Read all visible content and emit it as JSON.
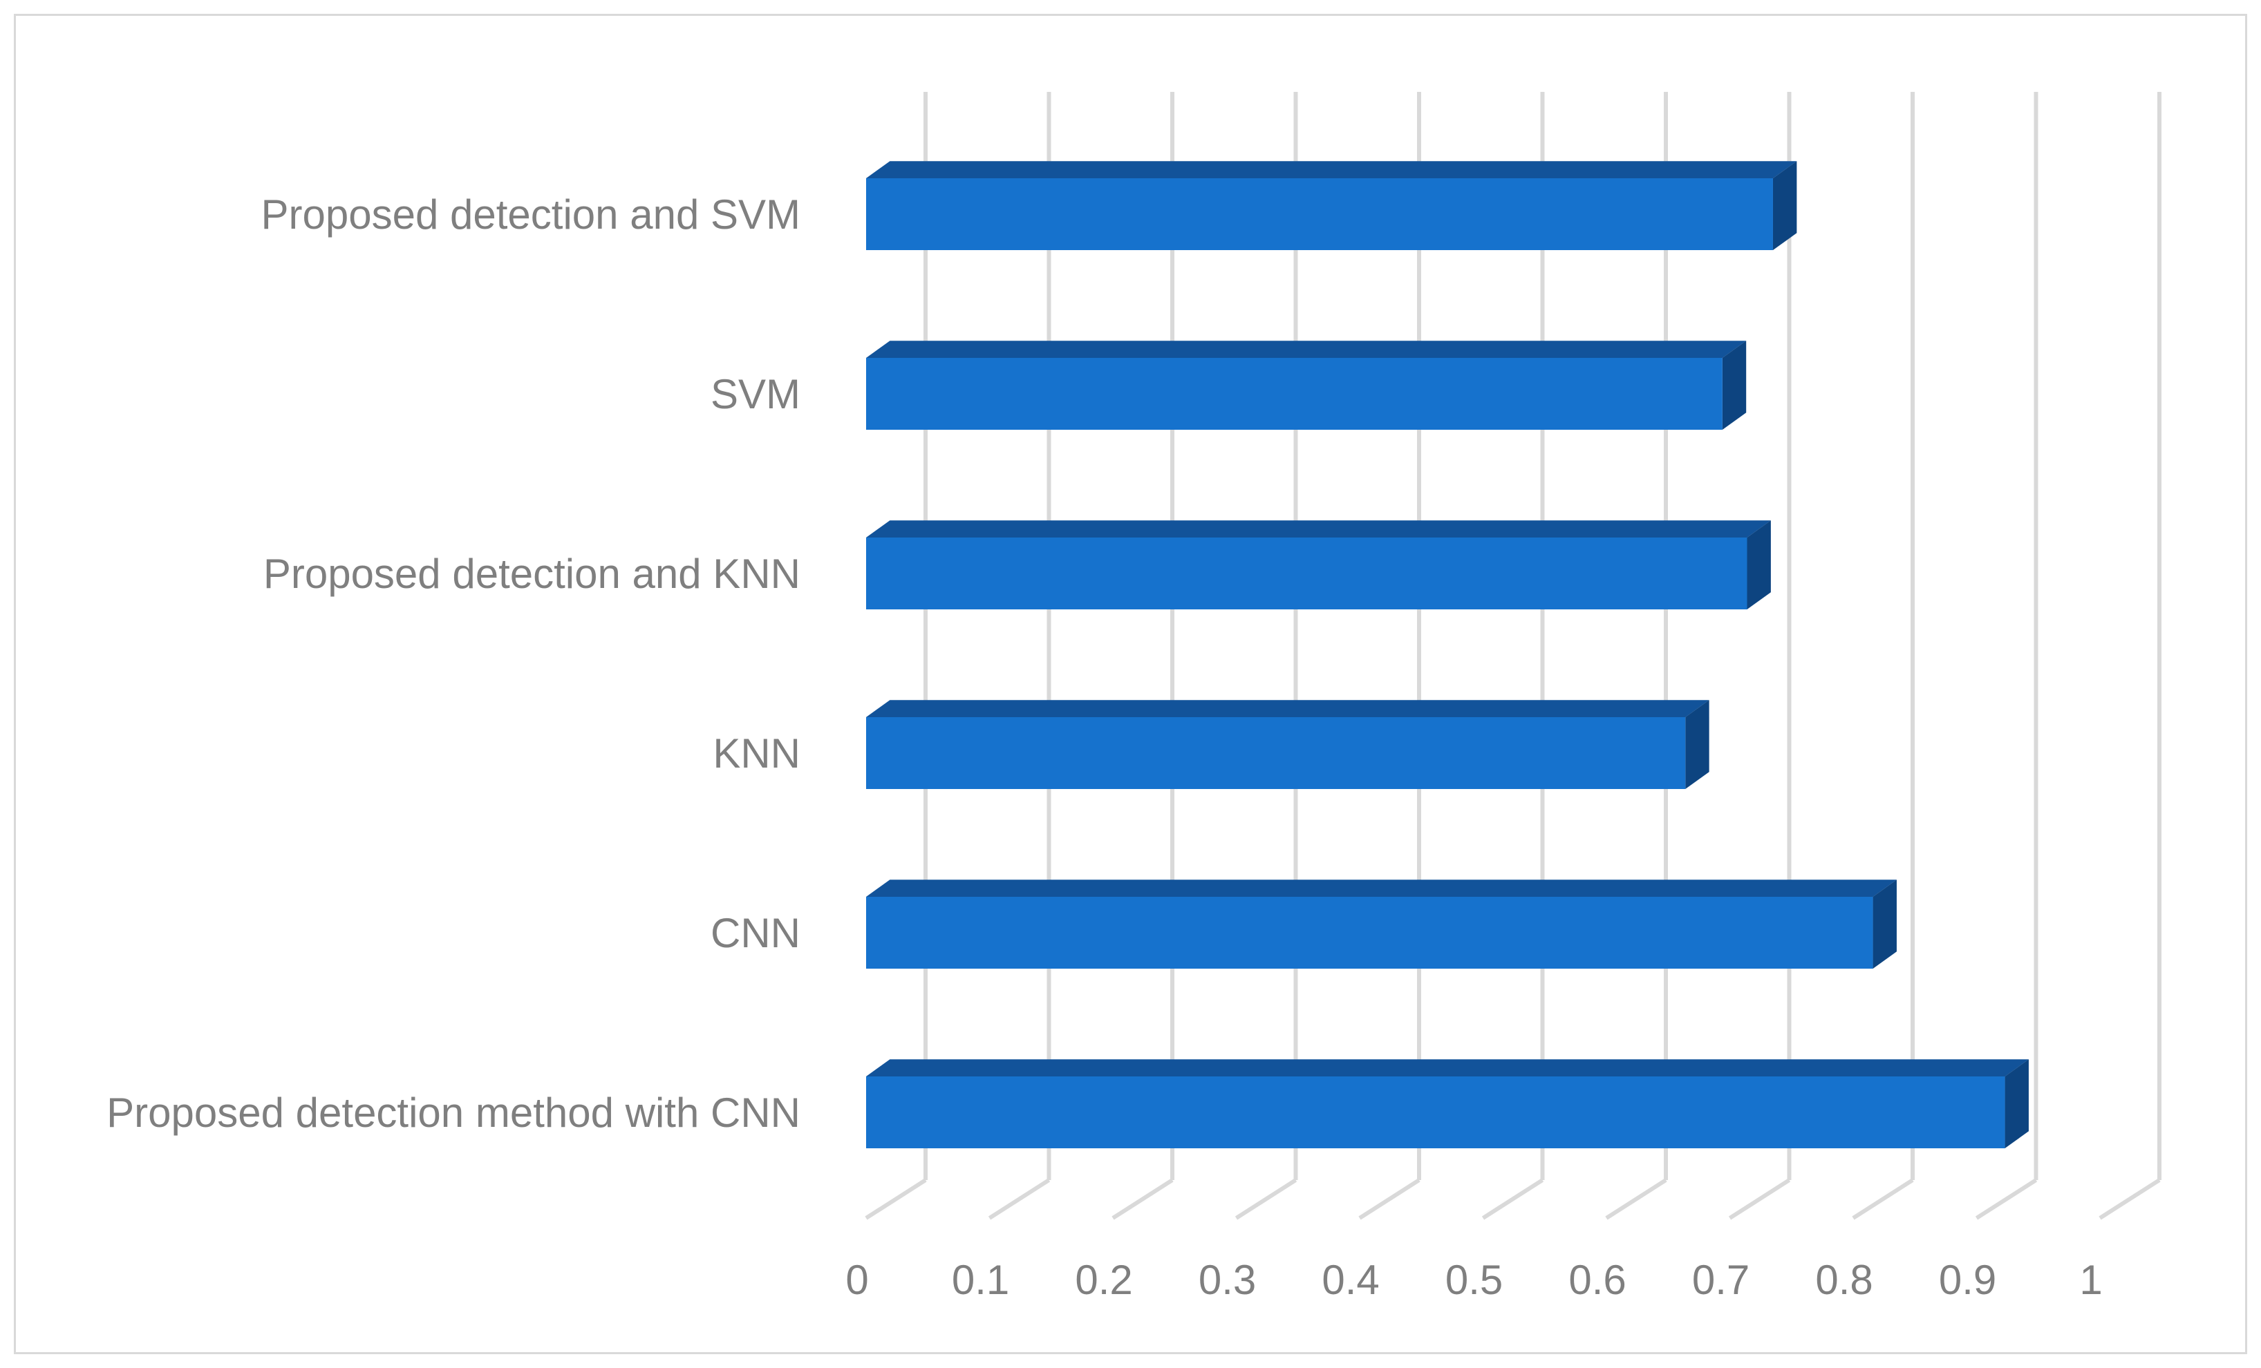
{
  "chart_data": {
    "type": "bar",
    "orientation": "horizontal",
    "style": "3d",
    "categories": [
      "Proposed detection and SVM",
      "SVM",
      "Proposed detection and KNN",
      "KNN",
      "CNN",
      "Proposed detection method with CNN"
    ],
    "values": [
      0.735,
      0.694,
      0.714,
      0.664,
      0.816,
      0.923
    ],
    "xlim": [
      0,
      1
    ],
    "xticks": [
      "0",
      "0.1",
      "0.2",
      "0.3",
      "0.4",
      "0.5",
      "0.6",
      "0.7",
      "0.8",
      "0.9",
      "1"
    ],
    "title": "",
    "xlabel": "",
    "ylabel": "",
    "grid": true,
    "legend": "none",
    "colors": {
      "bar_front": "#1672cd",
      "bar_top": "#12539a",
      "bar_side": "#0d4480",
      "grid": "#d9d9d9",
      "text": "#7f7f7f"
    }
  }
}
